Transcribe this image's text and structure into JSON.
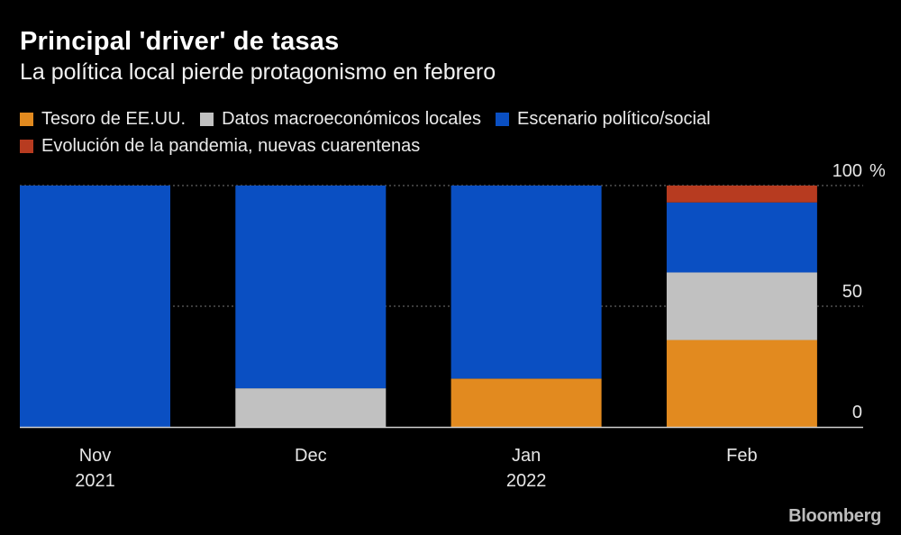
{
  "chart_data": {
    "type": "bar",
    "stacked": true,
    "title": "Principal 'driver' de tasas",
    "subtitle": "La política local pierde protagonismo en febrero",
    "categories": [
      "Nov",
      "Dec",
      "Jan",
      "Feb"
    ],
    "category_sublabels": [
      "2021",
      "",
      "2022",
      ""
    ],
    "series": [
      {
        "name": "Tesoro de EE.UU.",
        "color": "#e28a1f",
        "values": [
          0,
          0,
          20,
          36
        ]
      },
      {
        "name": "Datos macroeconómicos locales",
        "color": "#c1c1c1",
        "values": [
          0,
          16,
          0,
          28
        ]
      },
      {
        "name": "Escenario político/social",
        "color": "#0a4fc2",
        "values": [
          100,
          84,
          80,
          29
        ]
      },
      {
        "name": "Evolución de la pandemia, nuevas cuarentenas",
        "color": "#b73b20",
        "values": [
          0,
          0,
          0,
          7
        ]
      }
    ],
    "ylim": [
      0,
      100
    ],
    "yticks": [
      {
        "value": 0,
        "label": "0"
      },
      {
        "value": 50,
        "label": "50"
      },
      {
        "value": 100,
        "label": "100"
      }
    ],
    "yunit": "%",
    "legend_position": "top",
    "grid": "dotted"
  },
  "brand": "Bloomberg"
}
